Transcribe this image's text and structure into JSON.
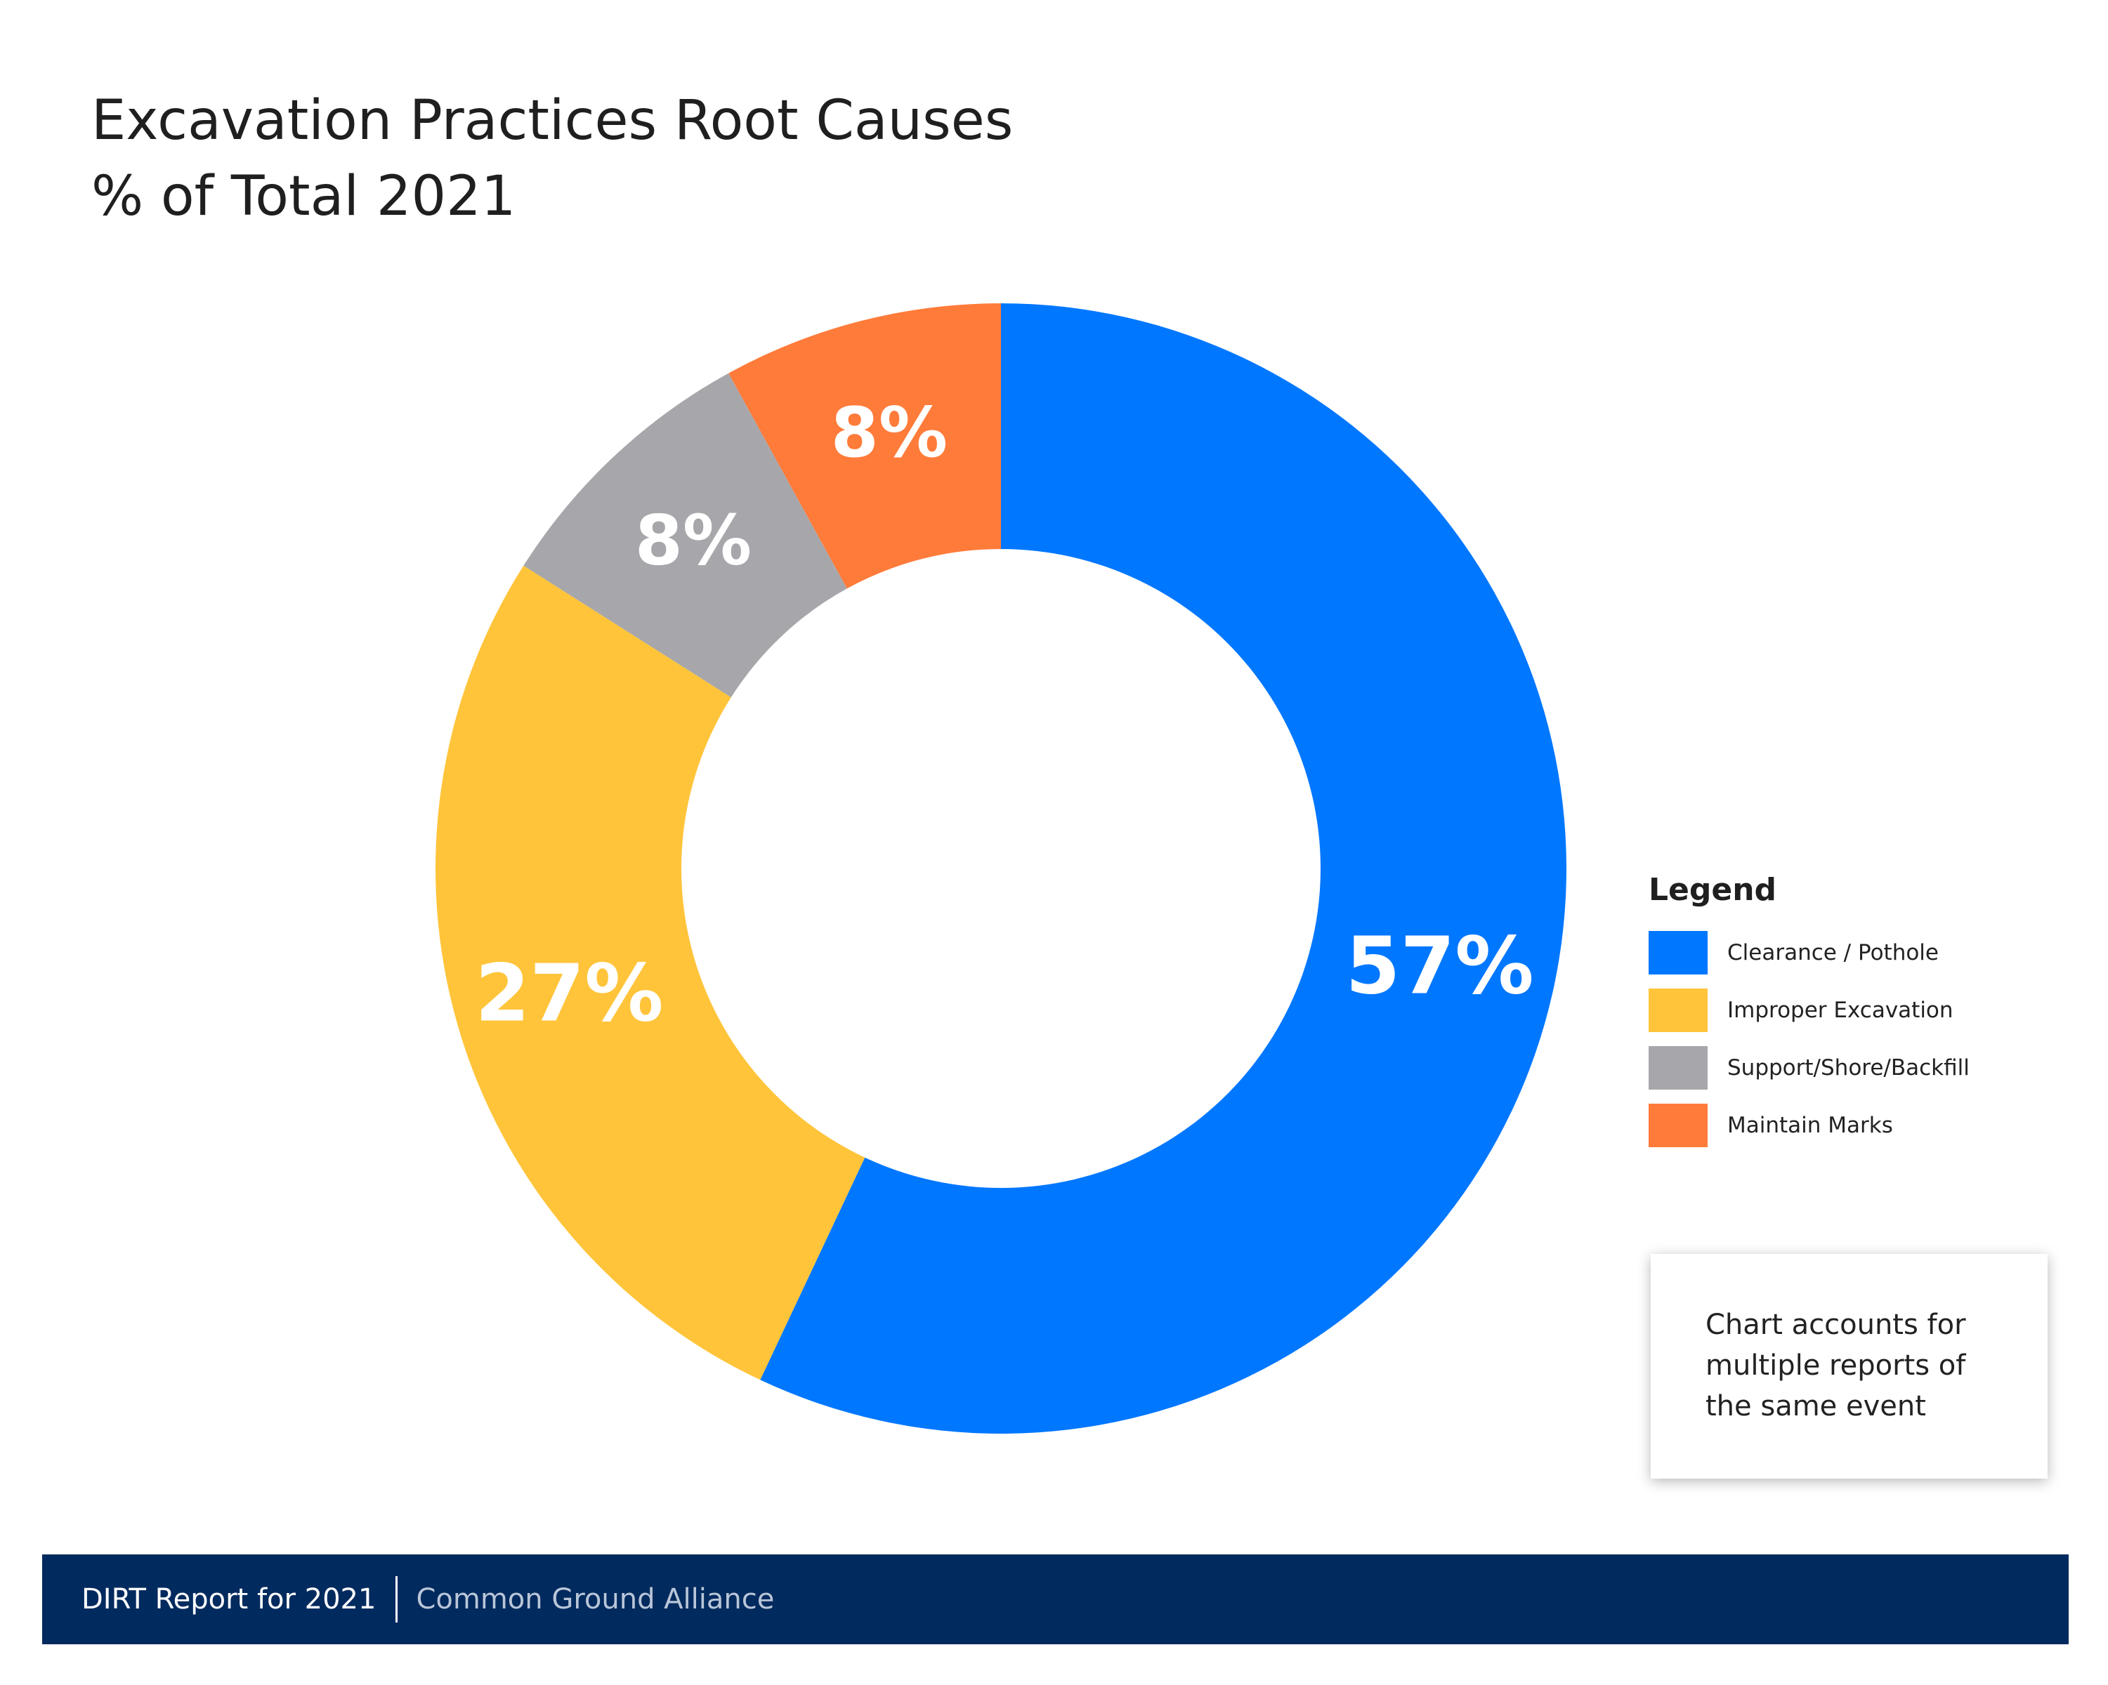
{
  "title_lines": [
    "Excavation Practices Root Causes",
    "% of Total 2021"
  ],
  "chart_data": {
    "type": "pie",
    "title": "Excavation Practices Root Causes",
    "subtitle": "% of Total 2021",
    "donut": true,
    "slices": [
      {
        "name": "Clearance / Pothole",
        "value": 57,
        "label": "57%",
        "color": "#0077FF"
      },
      {
        "name": "Improper Excavation",
        "value": 27,
        "label": "27%",
        "color": "#FFC43A"
      },
      {
        "name": "Support/Shore/Backfill",
        "value": 8,
        "label": "8%",
        "color": "#A7A7AB"
      },
      {
        "name": "Maintain Marks",
        "value": 8,
        "label": "8%",
        "color": "#FF7B3A"
      }
    ],
    "legend_title": "Legend",
    "legend_position": "right"
  },
  "note": [
    "Chart accounts for",
    "multiple reports of",
    "the same event"
  ],
  "footer": {
    "report": "DIRT Report for 2021",
    "org": "Common Ground Alliance"
  },
  "colors": {
    "footer_bg": "#012A5E",
    "footer_org_text": "#b9c6d8"
  }
}
